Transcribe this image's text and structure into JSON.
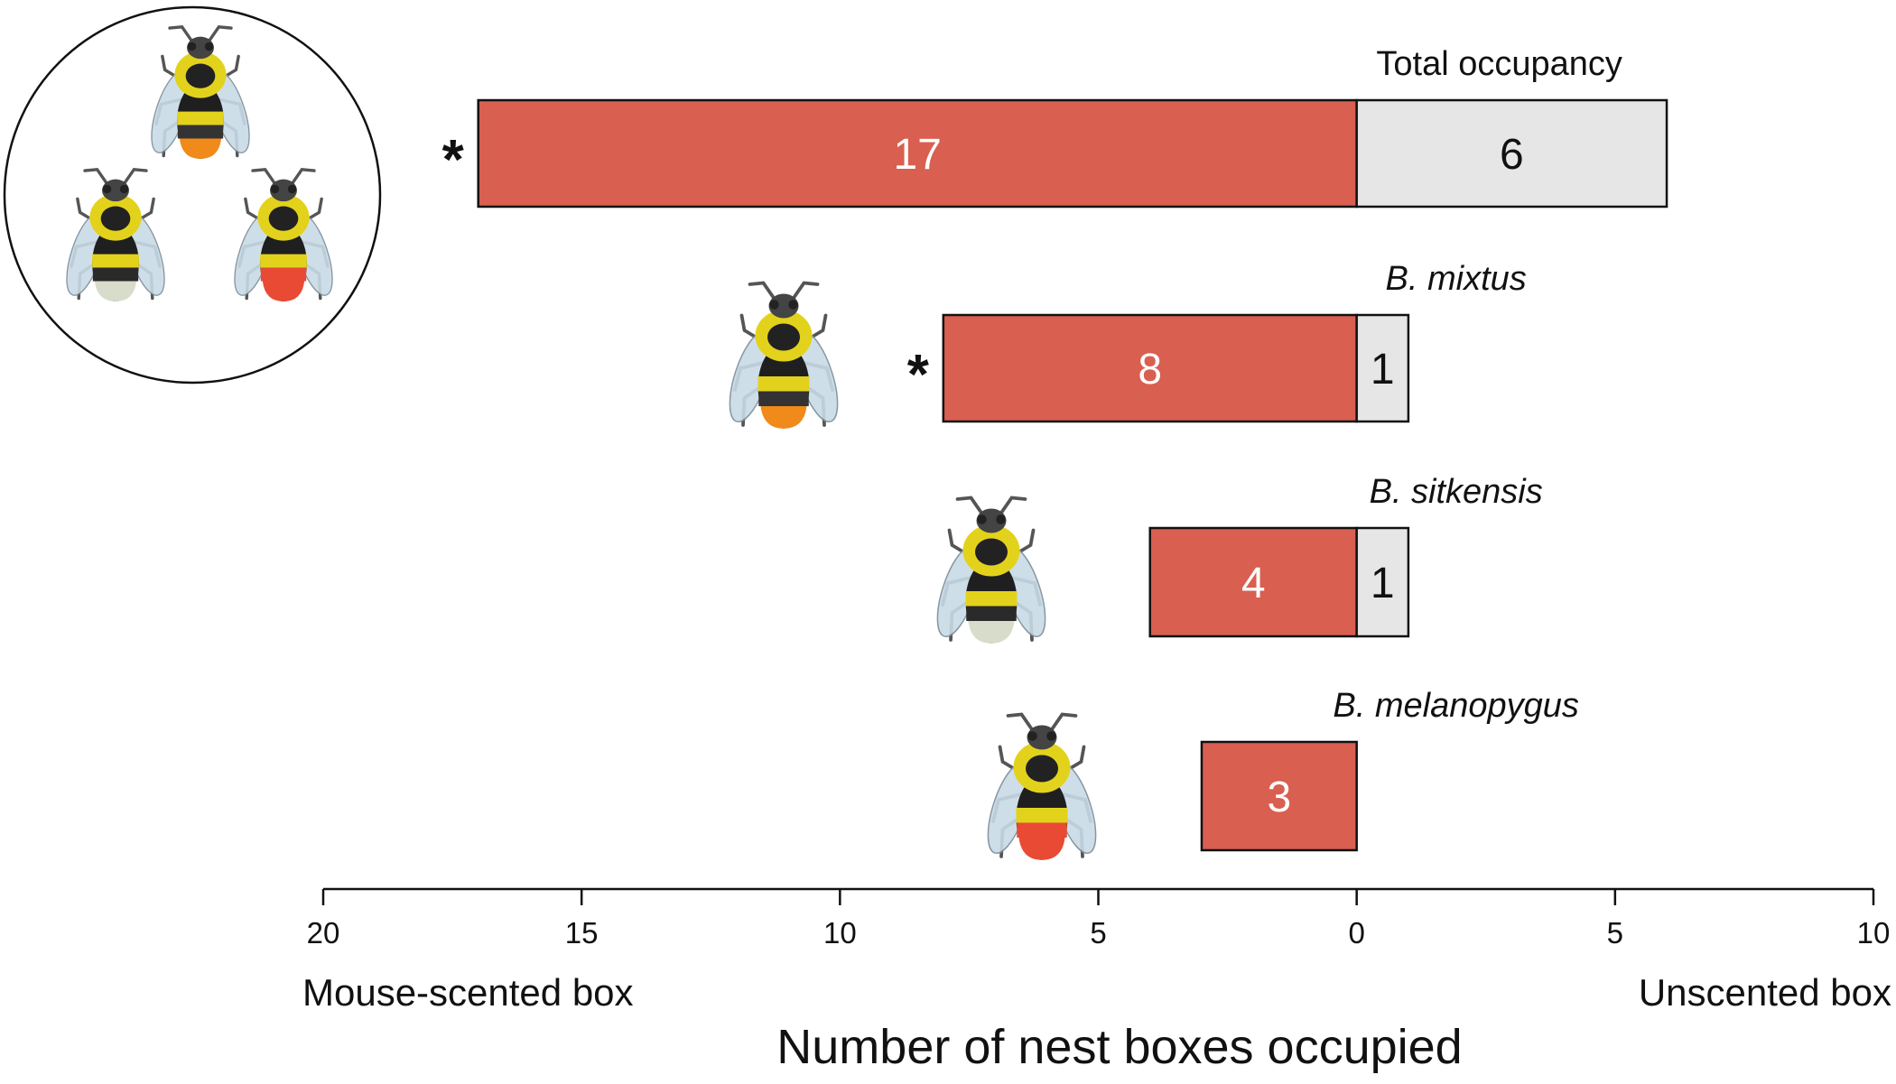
{
  "chart_data": {
    "type": "bar",
    "orientation": "horizontal-diverging",
    "categories": [
      "Total occupancy",
      "B. mixtus",
      "B. sitkensis",
      "B. melanopygus"
    ],
    "italic_categories": [
      false,
      true,
      true,
      true
    ],
    "significant": [
      true,
      true,
      false,
      false
    ],
    "significance_marker": "*",
    "series": [
      {
        "name": "Mouse-scented box",
        "values": [
          17,
          8,
          4,
          3
        ],
        "color": "#d95f50",
        "label_color": "#ffffff"
      },
      {
        "name": "Unscented box",
        "values": [
          6,
          1,
          1,
          0
        ],
        "color": "#e6e6e6",
        "label_color": "#111111"
      }
    ],
    "xlim": [
      -20,
      10
    ],
    "xticks": [
      -20,
      -15,
      -10,
      -5,
      0,
      5,
      10
    ],
    "xtick_labels": [
      "20",
      "15",
      "10",
      "5",
      "0",
      "5",
      "10"
    ],
    "left_axis_label": "Mouse-scented box",
    "right_axis_label": "Unscented box",
    "xlabel": "Number of nest boxes occupied",
    "grid": false,
    "legend": "none"
  },
  "colors": {
    "scented": "#d95f50",
    "unscented": "#e6e6e6",
    "outline": "#111111"
  },
  "icons": [
    "bumblebee-group-icon",
    "b-mixtus-bee-icon",
    "b-sitkensis-bee-icon",
    "b-melanopygus-bee-icon"
  ]
}
